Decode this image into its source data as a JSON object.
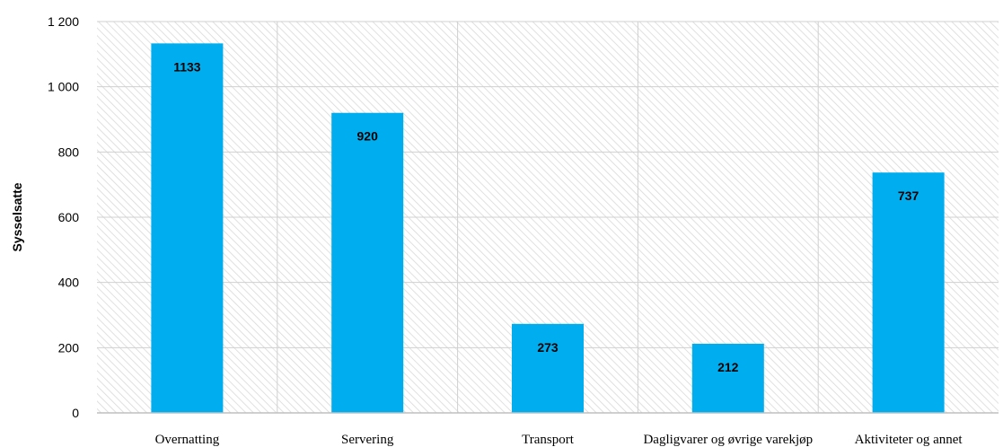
{
  "chart_data": {
    "type": "bar",
    "title": "",
    "xlabel": "",
    "ylabel": "Sysselsatte",
    "categories": [
      "Overnatting",
      "Servering",
      "Transport",
      "Dagligvarer og øvrige varekjøp",
      "Aktiviteter og annet"
    ],
    "values": [
      1133,
      920,
      273,
      212,
      737
    ],
    "data_labels": [
      "1133",
      "920",
      "273",
      "212",
      "737"
    ],
    "ylim": [
      0,
      1200
    ],
    "yticks": [
      0,
      200,
      400,
      600,
      800,
      1000,
      1200
    ],
    "ytick_labels": [
      "0",
      "200",
      "400",
      "600",
      "800",
      "1 000",
      "1 200"
    ],
    "grid": true,
    "legend": "none",
    "colors": {
      "bar": "#00aeef",
      "hatch": "#d9d9d9",
      "grid": "#d0d0d0",
      "axis": "#bfbfbf"
    }
  }
}
